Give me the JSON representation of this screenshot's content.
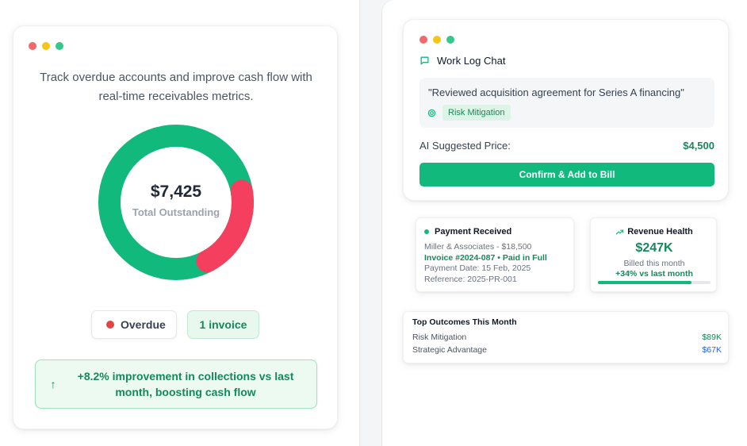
{
  "colors": {
    "accent_green": "#12b97c",
    "overdue_red": "#f43f5e",
    "link_blue": "#2563eb"
  },
  "left": {
    "intro": "Track overdue accounts and improve cash flow with real-time receivables metrics.",
    "donut": {
      "amount": "$7,425",
      "label": "Total Outstanding",
      "overdue_fraction": 0.2
    },
    "overdue_label": "Overdue",
    "invoice_label": "1 invoice",
    "improvement_icon": "arrow-up-icon",
    "improvement_text": "+8.2% improvement in collections vs last month, boosting cash flow"
  },
  "chat": {
    "title": "Work Log Chat",
    "title_icon": "message-square-icon",
    "quote": "\"Reviewed acquisition agreement for Series A financing\"",
    "tag_icon": "target-icon",
    "tag": "Risk Mitigation",
    "price_label": "AI Suggested Price:",
    "price_value": "$4,500",
    "confirm_label": "Confirm & Add to Bill"
  },
  "payment": {
    "title": "Payment Received",
    "client_line": "Miller & Associates - $18,500",
    "invoice_line": "Invoice #2024-087 • Paid in Full",
    "date_line": "Payment Date: 15 Feb, 2025",
    "ref_line": "Reference: 2025-PR-001"
  },
  "revenue": {
    "title": "Revenue Health",
    "title_icon": "trending-up-icon",
    "amount": "$247K",
    "sub": "Billed this month",
    "change": "+34% vs last month",
    "progress_fraction": 0.83
  },
  "outcomes": {
    "title": "Top Outcomes This Month",
    "rows": [
      {
        "label": "Risk Mitigation",
        "value": "$89K"
      },
      {
        "label": "Strategic Advantage",
        "value": "$67K"
      }
    ]
  }
}
